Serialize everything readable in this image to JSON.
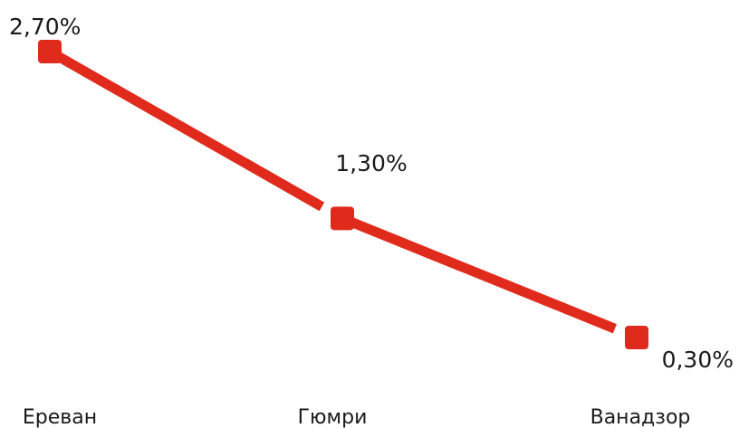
{
  "chart_data": {
    "type": "line",
    "categories": [
      "Ереван",
      "Гюмри",
      "Ванадзор"
    ],
    "series": [
      {
        "values": [
          2.7,
          1.3,
          0.3
        ]
      }
    ],
    "data_labels": [
      "2,70%",
      "1,30%",
      "0,30%"
    ],
    "color": "#e02a1b",
    "grid": false,
    "legend": "none",
    "y_axis_visible": false
  }
}
